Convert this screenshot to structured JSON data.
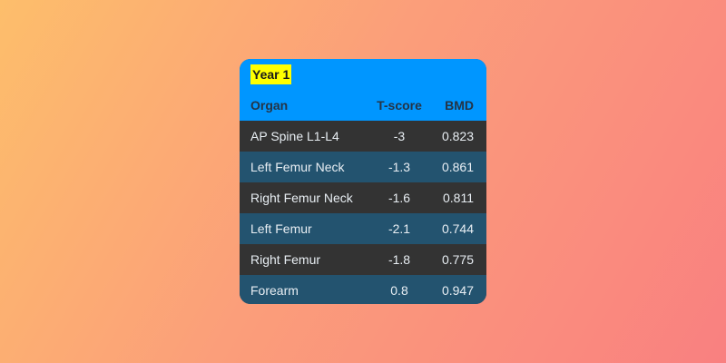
{
  "table": {
    "title": "Year 1",
    "columns": [
      "Organ",
      "T-score",
      "BMD"
    ],
    "rows": [
      {
        "organ": "AP Spine L1-L4",
        "tscore": "-3",
        "bmd": "0.823"
      },
      {
        "organ": "Left Femur Neck",
        "tscore": "-1.3",
        "bmd": "0.861"
      },
      {
        "organ": "Right Femur Neck",
        "tscore": "-1.6",
        "bmd": "0.811"
      },
      {
        "organ": "Left Femur",
        "tscore": "-2.1",
        "bmd": "0.744"
      },
      {
        "organ": "Right Femur",
        "tscore": "-1.8",
        "bmd": "0.775"
      },
      {
        "organ": "Forearm",
        "tscore": "0.8",
        "bmd": "0.947"
      }
    ]
  },
  "colors": {
    "header": "#0096ff",
    "badge": "#ffff00",
    "row_dark": "#333333",
    "row_blue": "#23536f"
  }
}
